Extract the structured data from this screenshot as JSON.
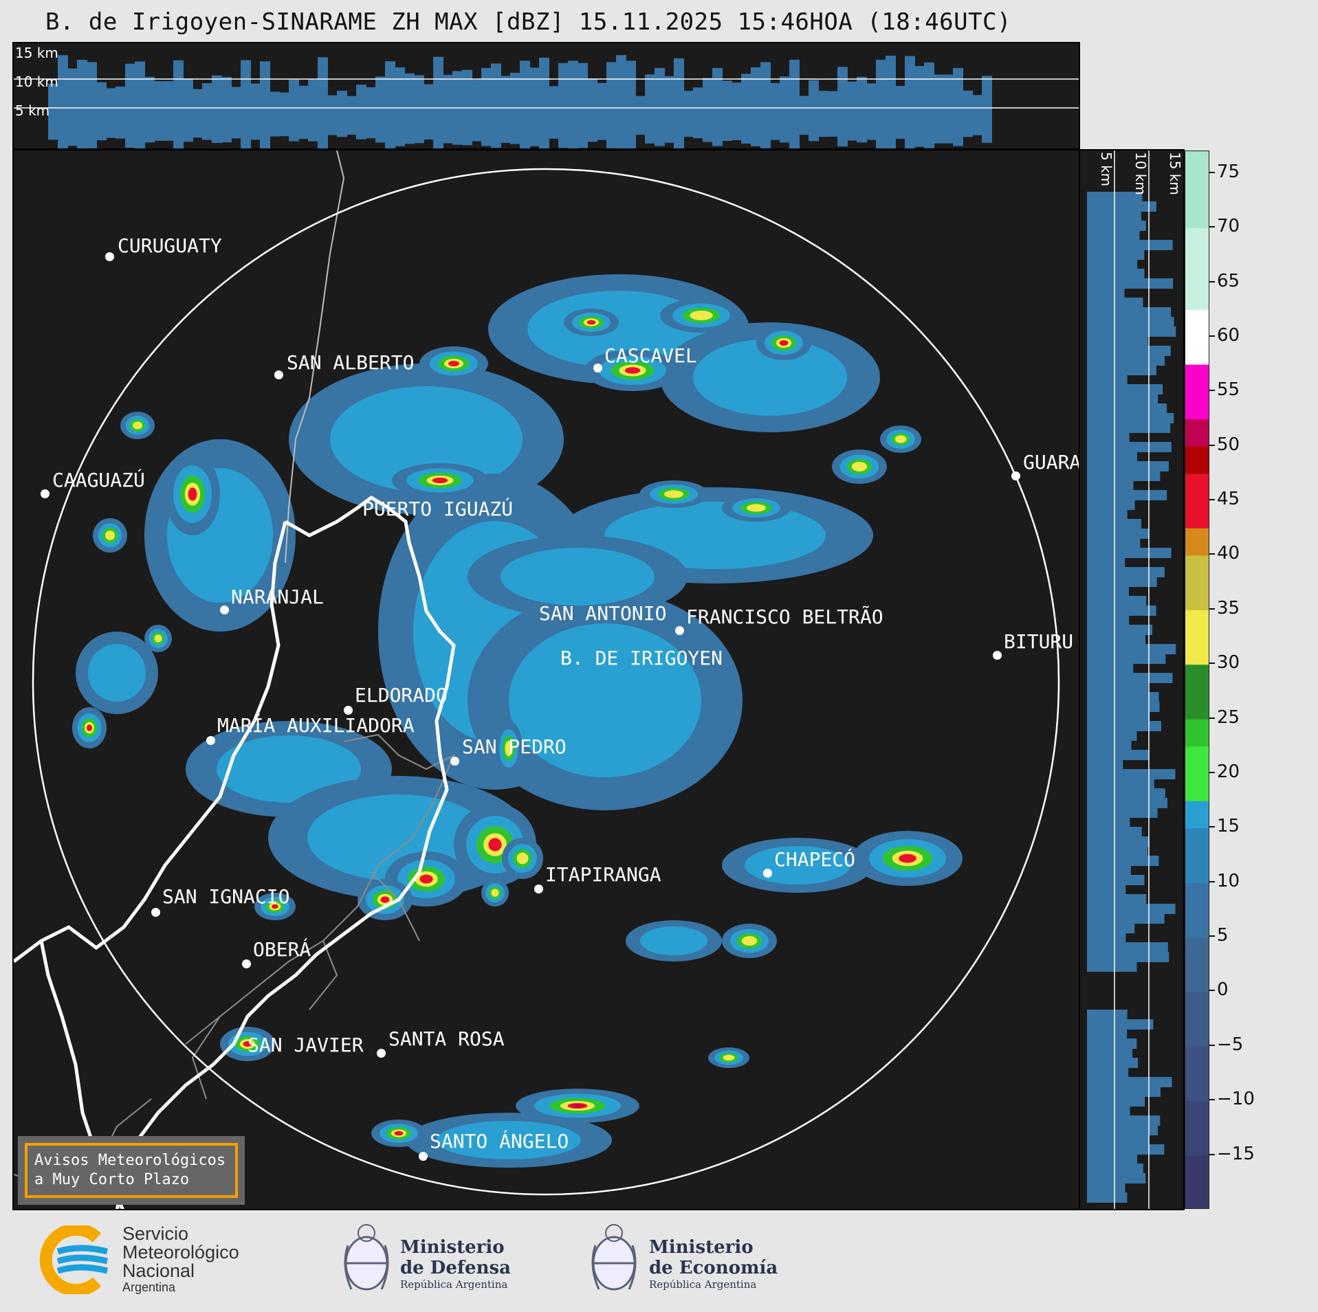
{
  "title": "B. de Irigoyen-SINARAME ZH MAX [dBZ] 15.11.2025 15:46HOA (18:46UTC)",
  "top_panel_labels": [
    "15 km",
    "10 km",
    "5 km"
  ],
  "right_panel_labels": [
    "5 km",
    "10 km",
    "15 km"
  ],
  "cities": [
    {
      "name": "CURUGUATY"
    },
    {
      "name": "SAN ALBERTO"
    },
    {
      "name": "CASCAVEL"
    },
    {
      "name": "CAAGUAZÚ"
    },
    {
      "name": "PUERTO IGUAZÚ"
    },
    {
      "name": "GUARA"
    },
    {
      "name": "NARANJAL"
    },
    {
      "name": "SAN ANTONIO"
    },
    {
      "name": "FRANCISCO BELTRÃO"
    },
    {
      "name": "BITURU"
    },
    {
      "name": "B. DE IRIGOYEN"
    },
    {
      "name": "ELDORADO"
    },
    {
      "name": "MARÍA AUXILIADORA"
    },
    {
      "name": "SAN PEDRO"
    },
    {
      "name": "CHAPECÓ"
    },
    {
      "name": "ITAPIRANGA"
    },
    {
      "name": "SAN IGNACIO"
    },
    {
      "name": "OBERÁ"
    },
    {
      "name": "SAN JAVIER"
    },
    {
      "name": "SANTA ROSA"
    },
    {
      "name": "SANTO ÁNGELO"
    }
  ],
  "avisos": {
    "line1": "Avisos Meteorológicos",
    "line2": "a Muy Corto Plazo"
  },
  "colorbar": {
    "label_ticks": [
      "75",
      "70",
      "65",
      "60",
      "55",
      "50",
      "45",
      "40",
      "35",
      "30",
      "25",
      "20",
      "15",
      "10",
      "5",
      "0",
      "−5",
      "−10",
      "−15"
    ],
    "tick_values": [
      75,
      70,
      65,
      60,
      55,
      50,
      45,
      40,
      35,
      30,
      25,
      20,
      15,
      10,
      5,
      0,
      -5,
      -10,
      -15
    ],
    "min": -20,
    "max": 77
  },
  "logos": {
    "smn": {
      "line1": "Servicio",
      "line2": "Meteorológico",
      "line3": "Nacional",
      "line4": "Argentina"
    },
    "defensa": {
      "line1": "Ministerio",
      "line2": "de Defensa",
      "line3": "República Argentina"
    },
    "economia": {
      "line1": "Ministerio",
      "line2": "de Economía",
      "line3": "República Argentina"
    }
  },
  "colors": {
    "background": "#e6e6e6",
    "panel": "#1b1b1b",
    "accent_orange": "#f5a000",
    "smn_blue": "#1aa0dc",
    "smn_orange": "#f5a800"
  }
}
